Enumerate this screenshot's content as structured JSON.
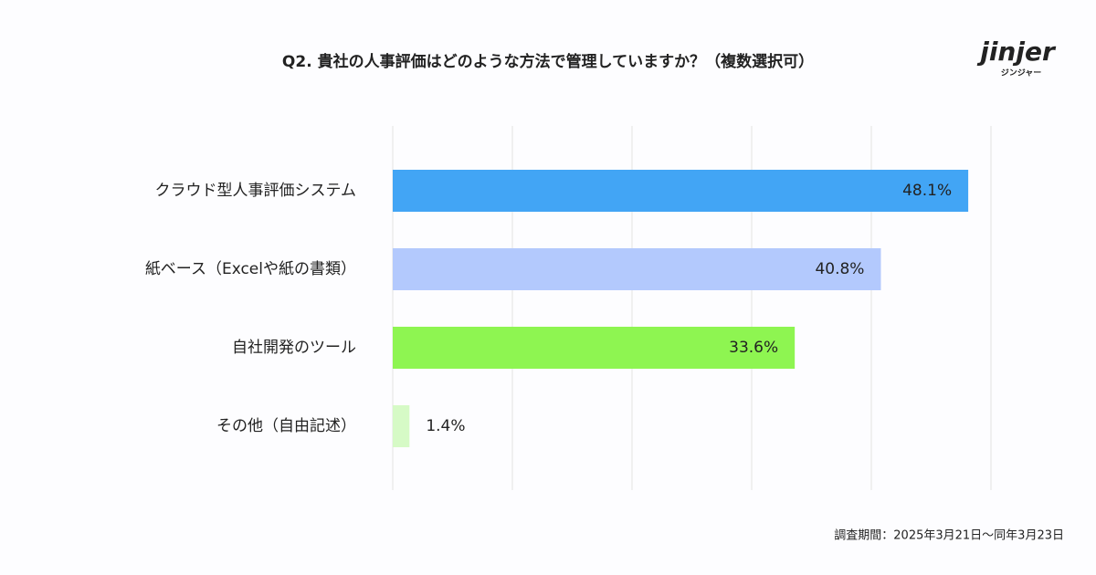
{
  "chart_data": {
    "type": "bar",
    "orientation": "horizontal",
    "title": "Q2. 貴社の人事評価はどのような方法で管理していますか？（複数選択可）",
    "categories": [
      "クラウド型人事評価システム",
      "紙ベース（Excelや紙の書類）",
      "自社開発のツール",
      "その他（自由記述）"
    ],
    "values": [
      48.1,
      40.8,
      33.6,
      1.4
    ],
    "value_labels": [
      "48.1%",
      "40.8%",
      "33.6%",
      "1.4%"
    ],
    "colors": [
      "#42a5f5",
      "#b3c9fd",
      "#8ef551",
      "#d6fac6"
    ],
    "xlim": [
      0,
      50
    ],
    "xticks": [
      0,
      10,
      20,
      30,
      40,
      50
    ],
    "grid": true,
    "footnote": "調査期間：2025年3月21日〜同年3月23日"
  },
  "logo": {
    "name": "jinjer",
    "subtitle": "ジンジャー"
  }
}
